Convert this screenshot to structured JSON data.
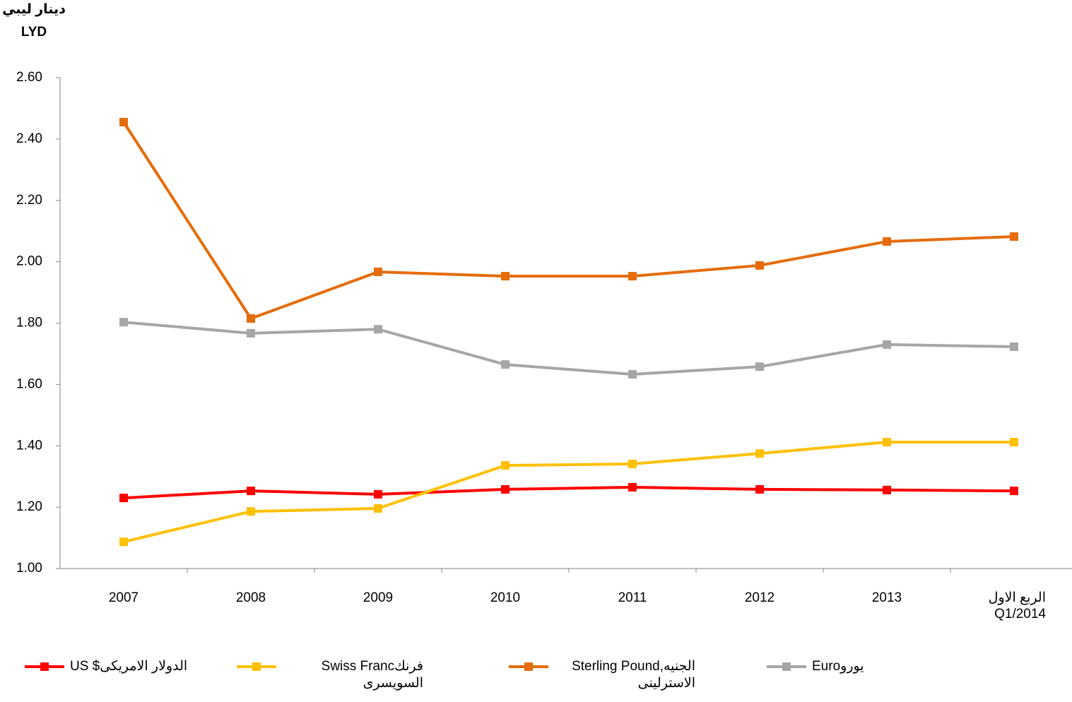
{
  "chart_data": {
    "type": "line",
    "y_title": [
      "دينار ليبي",
      "LYD"
    ],
    "categories": [
      "2007",
      "2008",
      "2009",
      "2010",
      "2011",
      "2012",
      "2013",
      "الربع الاول\nQ1/2014"
    ],
    "series": [
      {
        "name": "US $الدولار الامريكى",
        "color": "#ff0000",
        "values": [
          1.23,
          1.253,
          1.242,
          1.258,
          1.265,
          1.258,
          1.256,
          1.253
        ]
      },
      {
        "name": "Swiss Francفرنك السويسرى",
        "color": "#ffc000",
        "values": [
          1.087,
          1.186,
          1.196,
          1.336,
          1.341,
          1.375,
          1.412,
          1.412
        ]
      },
      {
        "name": "Sterling Pound,الجنيه الاسترلينى",
        "color": "#e46c0a",
        "values": [
          2.455,
          1.815,
          1.967,
          1.953,
          1.953,
          1.988,
          2.066,
          2.082
        ]
      },
      {
        "name": "Euroيورو",
        "color": "#a6a6a6",
        "values": [
          1.803,
          1.767,
          1.78,
          1.665,
          1.633,
          1.658,
          1.73,
          1.723
        ]
      }
    ],
    "ylim": [
      1.0,
      2.6
    ],
    "yticks": [
      {
        "value": 1.0,
        "label": "1.00"
      },
      {
        "value": 1.2,
        "label": "1.20"
      },
      {
        "value": 1.4,
        "label": "1.40"
      },
      {
        "value": 1.6,
        "label": "1.60"
      },
      {
        "value": 1.8,
        "label": "1.80"
      },
      {
        "value": 2.0,
        "label": "2.00"
      },
      {
        "value": 2.2,
        "label": "2.20"
      },
      {
        "value": 2.4,
        "label": "2.40"
      },
      {
        "value": 2.6,
        "label": "2.60"
      }
    ]
  }
}
